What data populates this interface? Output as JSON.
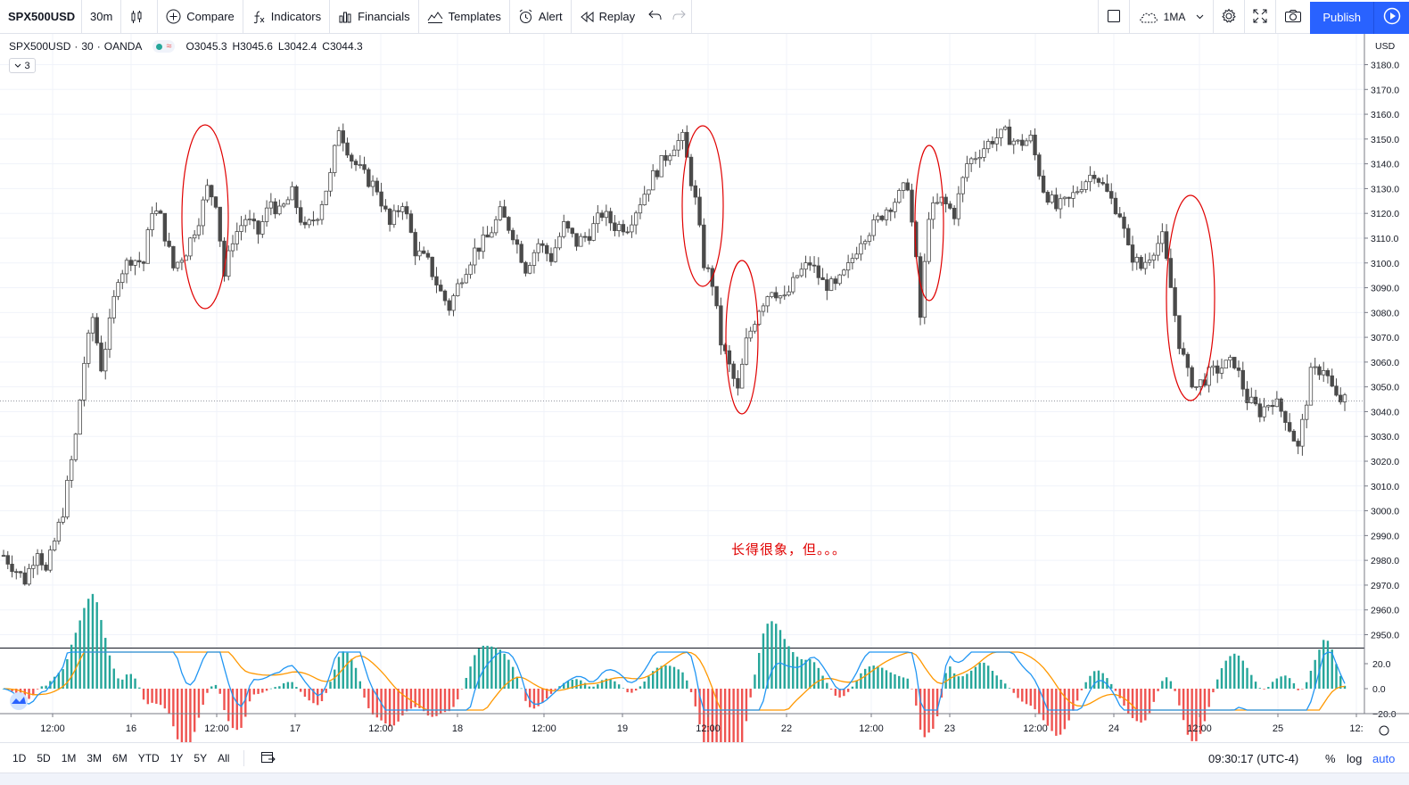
{
  "toolbar": {
    "symbol": "SPX500USD",
    "interval": "30m",
    "compare": "Compare",
    "indicators": "Indicators",
    "financials": "Financials",
    "templates": "Templates",
    "alert": "Alert",
    "replay": "Replay",
    "layout_name": "1MA",
    "publish": "Publish"
  },
  "legend": {
    "symbol": "SPX500USD",
    "interval": "30",
    "exchange": "OANDA",
    "open": "O3045.3",
    "high": "H3045.6",
    "low": "L3042.4",
    "close": "C3044.3",
    "indicator_count": "3"
  },
  "annotation": "长得很象，但。。。",
  "bottom": {
    "ranges": [
      "1D",
      "5D",
      "1M",
      "3M",
      "6M",
      "YTD",
      "1Y",
      "5Y",
      "All"
    ],
    "clock": "09:30:17 (UTC-4)",
    "percent": "%",
    "log": "log",
    "auto": "auto"
  },
  "colors": {
    "accent": "#2962ff",
    "candle": "#4a4a4a",
    "ellipse": "#e00000",
    "macd_line": "#2196f3",
    "signal_line": "#ff9800",
    "hist_pos": "#26a69a",
    "hist_neg": "#ef5350"
  },
  "chart_data": {
    "type": "candlestick",
    "currency": "USD",
    "y_ticks": [
      3180,
      3170,
      3160,
      3150,
      3140,
      3130,
      3120,
      3110,
      3100,
      3090,
      3080,
      3070,
      3060,
      3050,
      3040,
      3030,
      3020,
      3010,
      3000,
      2990,
      2980,
      2970,
      2960,
      2950
    ],
    "y_tick_labels": [
      "3180.0",
      "3170.0",
      "3160.0",
      "3150.0",
      "3140.0",
      "3130.0",
      "3120.0",
      "3110.0",
      "3100.0",
      "3090.0",
      "3080.0",
      "3070.0",
      "3060.0",
      "3050.0",
      "3040.0",
      "3030.0",
      "3020.0",
      "3010.0",
      "3000.0",
      "2990.0",
      "2980.0",
      "2970.0",
      "2960.0",
      "2950.0"
    ],
    "x_ticks": [
      "12:00",
      "16",
      "12:00",
      "17",
      "12:00",
      "18",
      "12:00",
      "19",
      "12:00",
      "22",
      "12:00",
      "23",
      "12:00",
      "24",
      "12:00",
      "25",
      "12:"
    ],
    "last_price": 3044.3,
    "price_path": [
      [
        0,
        2982
      ],
      [
        5,
        2972
      ],
      [
        8,
        2985
      ],
      [
        10,
        2975
      ],
      [
        14,
        3000
      ],
      [
        17,
        3030
      ],
      [
        19,
        3060
      ],
      [
        21,
        3078
      ],
      [
        23,
        3058
      ],
      [
        25,
        3075
      ],
      [
        27,
        3095
      ],
      [
        30,
        3102
      ],
      [
        33,
        3100
      ],
      [
        35,
        3122
      ],
      [
        37,
        3118
      ],
      [
        40,
        3098
      ],
      [
        43,
        3105
      ],
      [
        46,
        3118
      ],
      [
        48,
        3130
      ],
      [
        50,
        3125
      ],
      [
        52,
        3095
      ],
      [
        54,
        3110
      ],
      [
        57,
        3118
      ],
      [
        60,
        3112
      ],
      [
        63,
        3125
      ],
      [
        65,
        3120
      ],
      [
        68,
        3128
      ],
      [
        71,
        3113
      ],
      [
        74,
        3120
      ],
      [
        77,
        3135
      ],
      [
        79,
        3155
      ],
      [
        82,
        3142
      ],
      [
        85,
        3135
      ],
      [
        88,
        3130
      ],
      [
        91,
        3115
      ],
      [
        94,
        3125
      ],
      [
        97,
        3105
      ],
      [
        100,
        3100
      ],
      [
        103,
        3088
      ],
      [
        105,
        3082
      ],
      [
        108,
        3095
      ],
      [
        111,
        3105
      ],
      [
        114,
        3110
      ],
      [
        117,
        3120
      ],
      [
        120,
        3112
      ],
      [
        123,
        3098
      ],
      [
        126,
        3108
      ],
      [
        129,
        3102
      ],
      [
        132,
        3115
      ],
      [
        135,
        3108
      ],
      [
        138,
        3112
      ],
      [
        141,
        3120
      ],
      [
        144,
        3115
      ],
      [
        147,
        3115
      ],
      [
        150,
        3125
      ],
      [
        153,
        3135
      ],
      [
        156,
        3143
      ],
      [
        158,
        3148
      ],
      [
        160,
        3150
      ],
      [
        163,
        3125
      ],
      [
        165,
        3100
      ],
      [
        167,
        3092
      ],
      [
        169,
        3068
      ],
      [
        171,
        3058
      ],
      [
        173,
        3048
      ],
      [
        175,
        3068
      ],
      [
        178,
        3082
      ],
      [
        181,
        3090
      ],
      [
        184,
        3085
      ],
      [
        187,
        3095
      ],
      [
        190,
        3100
      ],
      [
        193,
        3092
      ],
      [
        196,
        3090
      ],
      [
        199,
        3098
      ],
      [
        202,
        3110
      ],
      [
        205,
        3115
      ],
      [
        208,
        3122
      ],
      [
        211,
        3127
      ],
      [
        213,
        3132
      ],
      [
        215,
        3100
      ],
      [
        216,
        3078
      ],
      [
        218,
        3120
      ],
      [
        221,
        3125
      ],
      [
        224,
        3120
      ],
      [
        227,
        3140
      ],
      [
        230,
        3145
      ],
      [
        233,
        3150
      ],
      [
        236,
        3152
      ],
      [
        239,
        3148
      ],
      [
        242,
        3150
      ],
      [
        245,
        3130
      ],
      [
        248,
        3122
      ],
      [
        251,
        3125
      ],
      [
        254,
        3132
      ],
      [
        257,
        3137
      ],
      [
        260,
        3128
      ],
      [
        263,
        3120
      ],
      [
        265,
        3105
      ],
      [
        268,
        3098
      ],
      [
        271,
        3106
      ],
      [
        273,
        3110
      ],
      [
        275,
        3090
      ],
      [
        277,
        3068
      ],
      [
        279,
        3055
      ],
      [
        281,
        3050
      ],
      [
        284,
        3055
      ],
      [
        287,
        3058
      ],
      [
        290,
        3060
      ],
      [
        293,
        3045
      ],
      [
        296,
        3040
      ],
      [
        299,
        3045
      ],
      [
        302,
        3038
      ],
      [
        305,
        3025
      ],
      [
        308,
        3055
      ],
      [
        311,
        3058
      ],
      [
        314,
        3045
      ],
      [
        316,
        3044.3
      ]
    ]
  }
}
